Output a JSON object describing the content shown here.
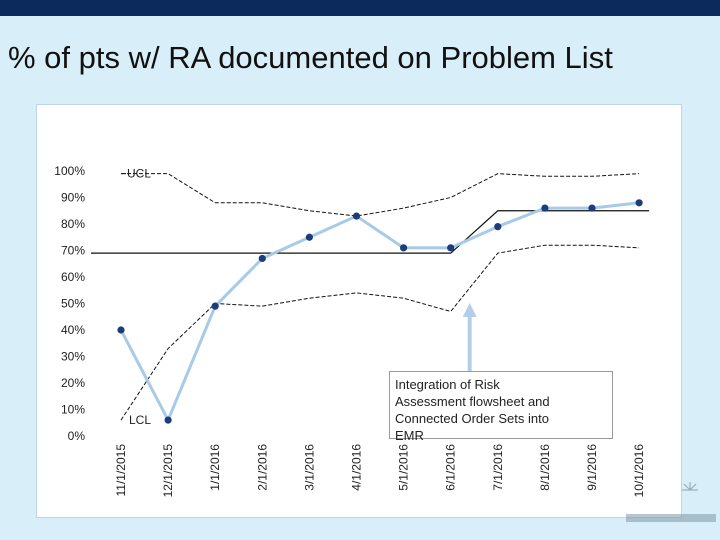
{
  "slide": {
    "title": "% of pts w/ RA documented on Problem List"
  },
  "chart_data": {
    "type": "line",
    "categories": [
      "11/1/2015",
      "12/1/2015",
      "1/1/2016",
      "2/1/2016",
      "3/1/2016",
      "4/1/2016",
      "5/1/2016",
      "6/1/2016",
      "7/1/2016",
      "8/1/2016",
      "9/1/2016",
      "10/1/2016"
    ],
    "yticks": [
      "100%",
      "90%",
      "80%",
      "70%",
      "60%",
      "50%",
      "40%",
      "30%",
      "20%",
      "10%",
      "0%"
    ],
    "ylim": [
      0,
      100
    ],
    "series": [
      {
        "role": "data",
        "values": [
          40,
          6,
          49,
          67,
          75,
          83,
          71,
          71,
          79,
          86,
          86,
          88
        ]
      }
    ],
    "center_line": [
      {
        "from": "11/1/2015",
        "to": "6/1/2016",
        "value": 69
      },
      {
        "from": "7/1/2016",
        "to": "10/1/2016",
        "value": 85
      }
    ],
    "ucl": {
      "label": "UCL",
      "values": [
        99,
        99,
        88,
        88,
        85,
        83,
        86,
        90,
        99,
        98,
        98,
        99
      ]
    },
    "lcl": {
      "label": "LCL",
      "values": [
        6,
        33,
        50,
        49,
        52,
        54,
        52,
        47,
        69,
        72,
        72,
        71
      ]
    },
    "annotation": {
      "text": [
        "Integration of Risk",
        "Assessment flowsheet and",
        "Connected Order Sets into",
        "EMR"
      ],
      "points_to": "6/1/2016"
    },
    "colors": {
      "data_line": "#a7cbe6",
      "marker": "#1c3d7a",
      "control_limits": "#111111",
      "center_line": "#111111",
      "arrow": "#b3cfe8"
    },
    "grid": false
  }
}
